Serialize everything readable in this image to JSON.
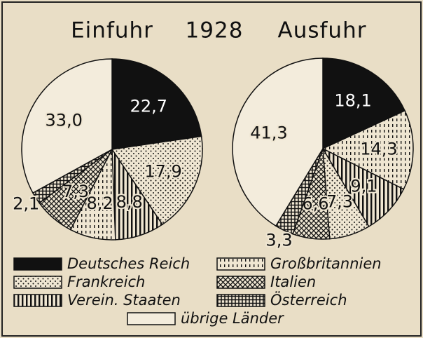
{
  "year": "1928",
  "chart_data": [
    {
      "type": "pie",
      "title": "Einfuhr",
      "categories": [
        "Deutsches Reich",
        "Frankreich",
        "Verein. Staaten",
        "Großbritannien",
        "Italien",
        "Österreich",
        "übrige Länder"
      ],
      "values": [
        22.7,
        17.9,
        8.8,
        8.2,
        7.3,
        2.1,
        33.0
      ],
      "value_labels": [
        "22,7",
        "17,9",
        "8,8",
        "8,2",
        "7,3",
        "2,1",
        "33,0"
      ],
      "patterns": [
        "solid",
        "dots",
        "vstripes",
        "dashes",
        "crosshatch",
        "grid",
        "none"
      ]
    },
    {
      "type": "pie",
      "title": "Ausfuhr",
      "categories": [
        "Deutsches Reich",
        "Großbritannien",
        "Verein. Staaten",
        "Frankreich",
        "Italien",
        "Österreich",
        "übrige Länder"
      ],
      "values": [
        18.1,
        14.3,
        9.1,
        7.3,
        6.6,
        3.3,
        41.3
      ],
      "value_labels": [
        "18,1",
        "14,3",
        "9,1",
        "7,3",
        "6,6",
        "3,3",
        "41,3"
      ],
      "patterns": [
        "solid",
        "dashes",
        "vstripes",
        "dots",
        "crosshatch",
        "grid",
        "none"
      ]
    }
  ]
}
